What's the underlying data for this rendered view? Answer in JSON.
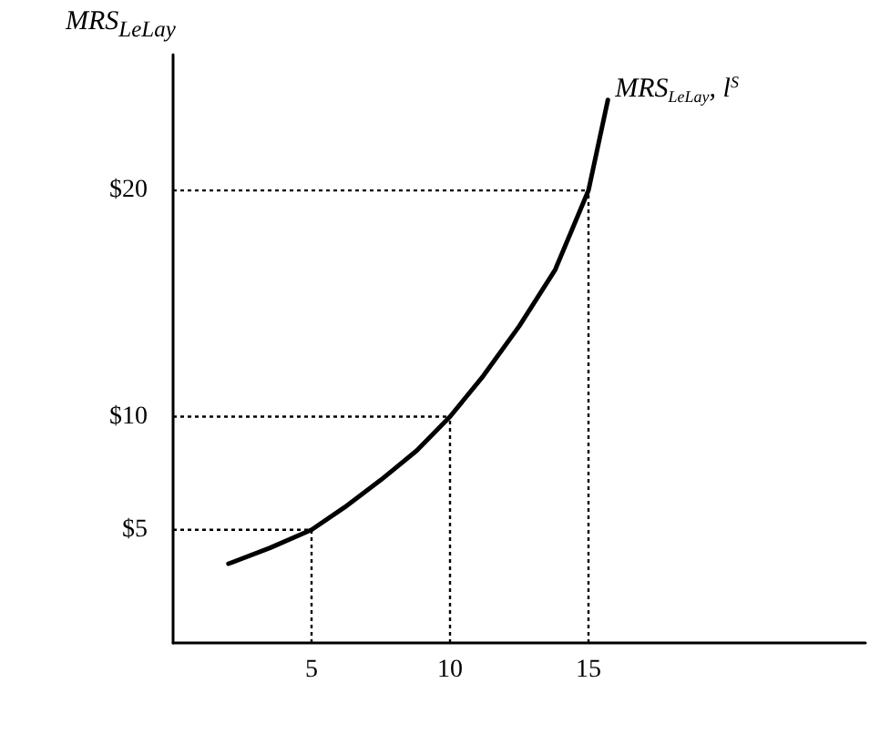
{
  "chart_data": {
    "type": "line",
    "ylabel": "MRS$_{LeLay}$",
    "series": [
      {
        "name": "MRS$_{LeLay}$, l$^{S}$",
        "color": "#000000",
        "x": [
          2,
          3.5,
          5,
          6.2,
          7.5,
          8.8,
          10,
          11.2,
          12.5,
          13.8,
          15,
          15.7
        ],
        "values": [
          3.5,
          4.2,
          5,
          6,
          7.2,
          8.5,
          10,
          11.8,
          14,
          16.5,
          20,
          24
        ]
      }
    ],
    "xlim": [
      0,
      25
    ],
    "xticks": [
      5,
      10,
      15
    ],
    "ylim": [
      0,
      26
    ],
    "yticks": [
      {
        "value": 5,
        "label": "$5"
      },
      {
        "value": 10,
        "label": "$10"
      },
      {
        "value": 20,
        "label": "$20"
      }
    ],
    "ref_lines": [
      {
        "axis": "y",
        "value": 5,
        "line_style": "dotted"
      },
      {
        "axis": "y",
        "value": 10,
        "line_style": "dotted"
      },
      {
        "axis": "y",
        "value": 20,
        "line_style": "dotted"
      },
      {
        "axis": "x",
        "value": 5,
        "line_style": "dotted"
      },
      {
        "axis": "x",
        "value": 10,
        "line_style": "dotted"
      },
      {
        "axis": "x",
        "value": 15,
        "line_style": "dotted"
      }
    ],
    "grid": false,
    "legend": false,
    "marker": "none",
    "line_style": "solid"
  }
}
